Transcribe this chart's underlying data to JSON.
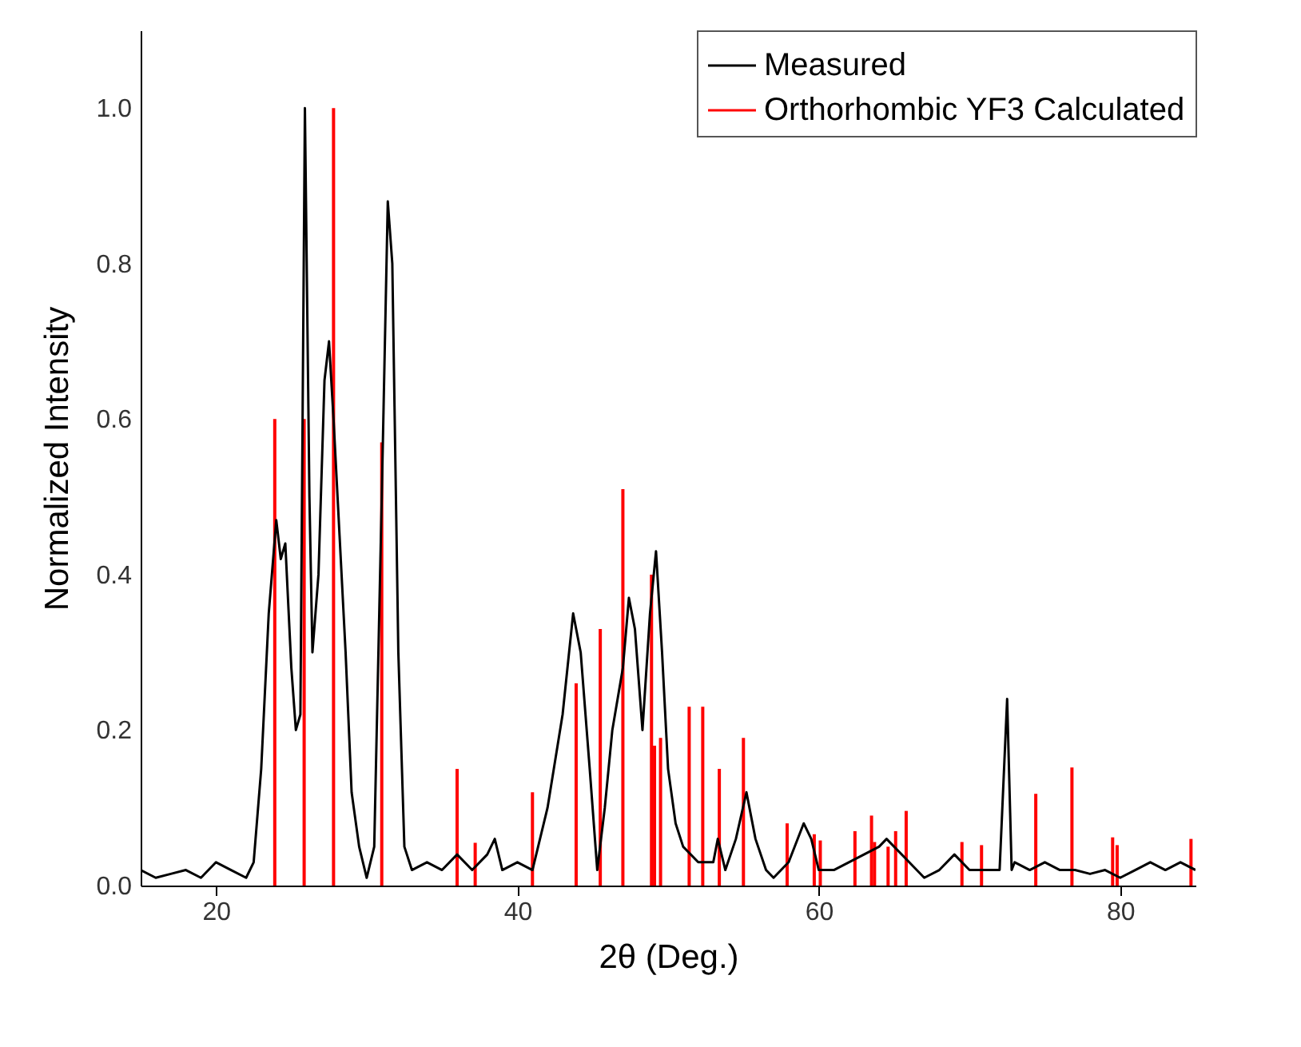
{
  "chart_data": {
    "type": "line",
    "xlabel": "2θ (Deg.)",
    "ylabel": "Normalized Intensity",
    "xlim": [
      15,
      85
    ],
    "ylim": [
      0,
      1.1
    ],
    "xticks": [
      20,
      40,
      60,
      80
    ],
    "yticks": [
      {
        "value": 0,
        "label": "0.0"
      },
      {
        "value": 0.2,
        "label": "0.2"
      },
      {
        "value": 0.4,
        "label": "0.4"
      },
      {
        "value": 0.6,
        "label": "0.6"
      },
      {
        "value": 0.8,
        "label": "0.8"
      },
      {
        "value": 1.0,
        "label": "1.0"
      }
    ],
    "legend": "top right",
    "grid": false,
    "series": [
      {
        "name": "Measured",
        "type": "line",
        "color": "#000000",
        "x": [
          15,
          16,
          17,
          18,
          19,
          20,
          21,
          22,
          22.5,
          23,
          23.5,
          24,
          24.3,
          24.6,
          25,
          25.3,
          25.6,
          25.9,
          26.2,
          26.4,
          26.8,
          27.2,
          27.5,
          27.8,
          28.2,
          28.6,
          29,
          29.5,
          30,
          30.5,
          31,
          31.4,
          31.7,
          32.1,
          32.5,
          33,
          34,
          35,
          36,
          37,
          38,
          38.5,
          39,
          40,
          41,
          42,
          43,
          43.7,
          44.2,
          44.8,
          45.3,
          45.8,
          46.3,
          47,
          47.4,
          47.8,
          48.3,
          48.8,
          49.2,
          49.6,
          50,
          50.5,
          51,
          52,
          53,
          53.3,
          53.8,
          54.5,
          55.2,
          55.8,
          56.5,
          57,
          58,
          59,
          59.5,
          60,
          61,
          62,
          63,
          64,
          64.5,
          65,
          66,
          67,
          68,
          69,
          70,
          71,
          72,
          72.5,
          72.8,
          73,
          74,
          75,
          76,
          77,
          78,
          79,
          80,
          81,
          82,
          83,
          84,
          85
        ],
        "values": [
          0.02,
          0.01,
          0.015,
          0.02,
          0.01,
          0.03,
          0.02,
          0.01,
          0.03,
          0.15,
          0.35,
          0.47,
          0.42,
          0.44,
          0.28,
          0.2,
          0.22,
          1.0,
          0.5,
          0.3,
          0.4,
          0.65,
          0.7,
          0.6,
          0.45,
          0.3,
          0.12,
          0.05,
          0.01,
          0.05,
          0.5,
          0.88,
          0.8,
          0.3,
          0.05,
          0.02,
          0.03,
          0.02,
          0.04,
          0.02,
          0.04,
          0.06,
          0.02,
          0.03,
          0.02,
          0.1,
          0.22,
          0.35,
          0.3,
          0.15,
          0.02,
          0.1,
          0.2,
          0.28,
          0.37,
          0.33,
          0.2,
          0.35,
          0.43,
          0.3,
          0.15,
          0.08,
          0.05,
          0.03,
          0.03,
          0.06,
          0.02,
          0.06,
          0.12,
          0.06,
          0.02,
          0.01,
          0.03,
          0.08,
          0.06,
          0.02,
          0.02,
          0.03,
          0.04,
          0.05,
          0.06,
          0.05,
          0.03,
          0.01,
          0.02,
          0.04,
          0.02,
          0.02,
          0.02,
          0.24,
          0.02,
          0.03,
          0.02,
          0.03,
          0.02,
          0.02,
          0.015,
          0.02,
          0.01,
          0.02,
          0.03,
          0.02,
          0.03,
          0.02
        ]
      },
      {
        "name": "Orthorhombic YF3 Calculated",
        "type": "bar",
        "color": "#ff0000",
        "x": [
          23.9,
          25.85,
          27.8,
          31.0,
          36.0,
          37.2,
          41.0,
          43.9,
          45.5,
          47.0,
          48.9,
          49.1,
          49.5,
          51.4,
          52.3,
          53.4,
          55.0,
          57.9,
          59.7,
          60.1,
          62.4,
          63.5,
          63.7,
          64.6,
          65.1,
          65.8,
          69.5,
          70.8,
          74.4,
          76.8,
          79.5,
          79.8,
          84.7
        ],
        "values": [
          0.6,
          0.6,
          1.0,
          0.57,
          0.15,
          0.055,
          0.12,
          0.26,
          0.33,
          0.51,
          0.4,
          0.18,
          0.19,
          0.23,
          0.23,
          0.15,
          0.19,
          0.08,
          0.066,
          0.058,
          0.07,
          0.09,
          0.056,
          0.05,
          0.07,
          0.096,
          0.056,
          0.052,
          0.118,
          0.152,
          0.062,
          0.052,
          0.06
        ]
      }
    ]
  }
}
